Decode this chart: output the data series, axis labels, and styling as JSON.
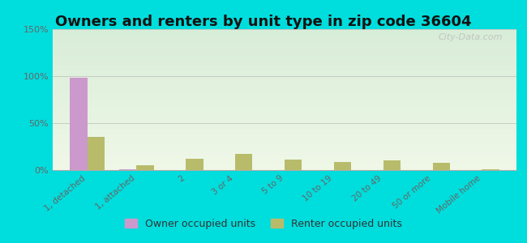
{
  "title": "Owners and renters by unit type in zip code 36604",
  "categories": [
    "1, detached",
    "1, attached",
    "2",
    "3 or 4",
    "5 to 9",
    "10 to 19",
    "20 to 49",
    "50 or more",
    "Mobile home"
  ],
  "owner_values": [
    98,
    1,
    0,
    0,
    0,
    0,
    0,
    0,
    0
  ],
  "renter_values": [
    35,
    5,
    12,
    17,
    11,
    9,
    10,
    8,
    1
  ],
  "owner_color": "#cc99cc",
  "renter_color": "#b8bc6a",
  "ylim": [
    0,
    150
  ],
  "yticks": [
    0,
    50,
    100,
    150
  ],
  "ytick_labels": [
    "0%",
    "50%",
    "100%",
    "150%"
  ],
  "plot_bg_top": "#d8edd8",
  "plot_bg_bottom": "#f0f8e8",
  "outer_background": "#00dddd",
  "grid_color": "#bbbbbb",
  "watermark": "City-Data.com",
  "legend_owner": "Owner occupied units",
  "legend_renter": "Renter occupied units",
  "bar_width": 0.35,
  "title_fontsize": 13
}
